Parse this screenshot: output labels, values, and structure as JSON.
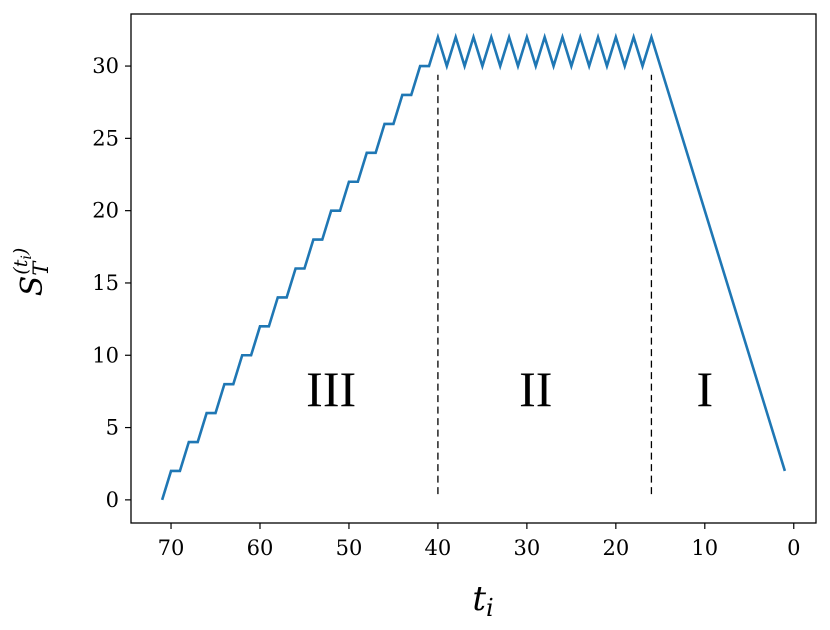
{
  "chart_data": {
    "type": "line",
    "title": "",
    "xlabel": "t",
    "xlabel_sub": "i",
    "ylabel": "S",
    "ylabel_sub": "T",
    "ylabel_sup": "(t",
    "ylabel_sup_sub": "i",
    "ylabel_sup_close": ")",
    "x_reversed": true,
    "xlim": [
      74.5,
      -2.5
    ],
    "ylim": [
      -1.6,
      33.6
    ],
    "x_ticks": [
      70,
      60,
      50,
      40,
      30,
      20,
      10,
      0
    ],
    "x_tick_labels": [
      "70",
      "60",
      "50",
      "40",
      "30",
      "20",
      "10",
      "0"
    ],
    "y_ticks": [
      0,
      5,
      10,
      15,
      20,
      25,
      30
    ],
    "y_tick_labels": [
      "0",
      "5",
      "10",
      "15",
      "20",
      "25",
      "30"
    ],
    "grid": false,
    "series_color": "#1f77b4",
    "series": [
      {
        "x": [
          71,
          70,
          69,
          68,
          67,
          66,
          65,
          64,
          63,
          62,
          61,
          60,
          59,
          58,
          57,
          56,
          55,
          54,
          53,
          52,
          51,
          50,
          49,
          48,
          47,
          46,
          45,
          44,
          43,
          42,
          41,
          40,
          39,
          38,
          37,
          36,
          35,
          34,
          33,
          32,
          31,
          30,
          29,
          28,
          27,
          26,
          25,
          24,
          23,
          22,
          21,
          20,
          19,
          18,
          17,
          16,
          1
        ],
        "y": [
          0,
          2,
          2,
          4,
          4,
          6,
          6,
          8,
          8,
          10,
          10,
          12,
          12,
          14,
          14,
          16,
          16,
          18,
          18,
          20,
          20,
          22,
          22,
          24,
          24,
          26,
          26,
          28,
          28,
          30,
          30,
          32,
          30,
          32,
          30,
          32,
          30,
          32,
          30,
          32,
          30,
          32,
          30,
          32,
          30,
          32,
          30,
          32,
          30,
          32,
          30,
          32,
          30,
          32,
          30,
          32,
          2
        ]
      }
    ],
    "vlines": [
      {
        "x": 40,
        "y0": 0.4,
        "y1": 29.4
      },
      {
        "x": 16,
        "y0": 0.4,
        "y1": 29.4
      }
    ],
    "annotations": [
      {
        "text": "III",
        "x": 52
      },
      {
        "text": "II",
        "x": 29
      },
      {
        "text": "I",
        "x": 10
      }
    ],
    "annotation_y": 7.6
  }
}
